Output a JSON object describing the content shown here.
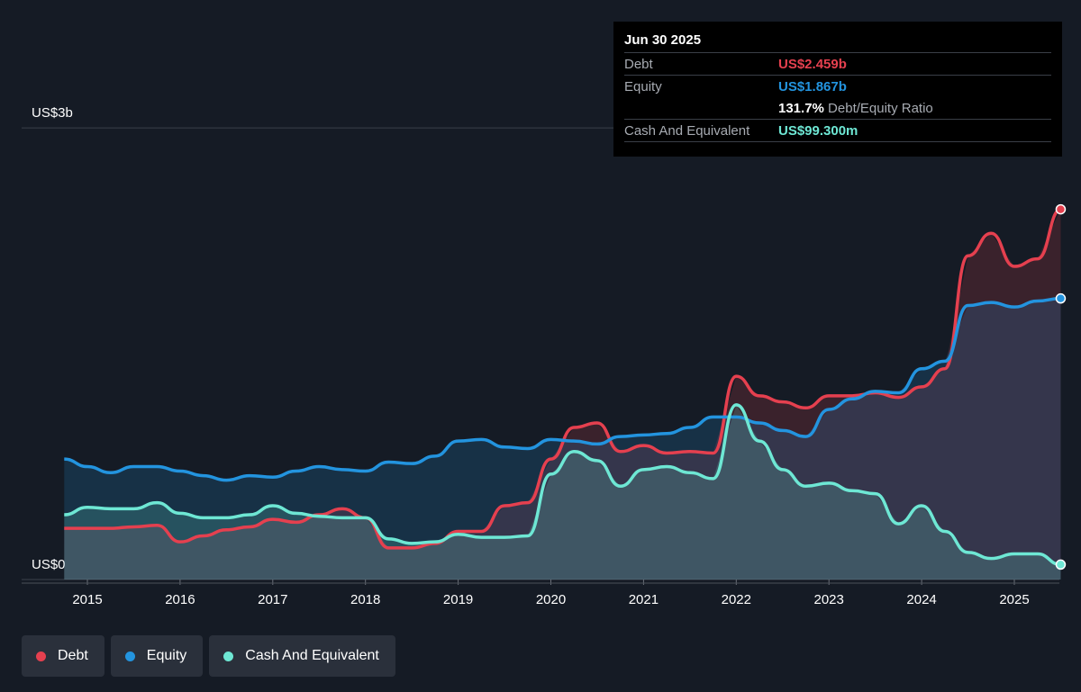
{
  "chart_data": {
    "type": "area",
    "x": [
      2014.75,
      2015,
      2015.25,
      2015.5,
      2015.75,
      2016,
      2016.25,
      2016.5,
      2016.75,
      2017,
      2017.25,
      2017.5,
      2017.75,
      2018,
      2018.25,
      2018.5,
      2018.75,
      2019,
      2019.25,
      2019.5,
      2019.75,
      2020,
      2020.25,
      2020.5,
      2020.75,
      2021,
      2021.25,
      2021.5,
      2021.75,
      2022,
      2022.25,
      2022.5,
      2022.75,
      2023,
      2023.25,
      2023.5,
      2023.75,
      2024,
      2024.25,
      2024.5,
      2024.75,
      2025,
      2025.25,
      2025.5
    ],
    "series": [
      {
        "name": "Debt",
        "color": "#e5404f",
        "values": [
          0.34,
          0.34,
          0.34,
          0.35,
          0.36,
          0.25,
          0.29,
          0.33,
          0.35,
          0.4,
          0.38,
          0.43,
          0.47,
          0.41,
          0.21,
          0.21,
          0.24,
          0.32,
          0.32,
          0.49,
          0.51,
          0.8,
          1.01,
          1.04,
          0.85,
          0.89,
          0.84,
          0.85,
          0.84,
          1.35,
          1.22,
          1.18,
          1.14,
          1.22,
          1.22,
          1.24,
          1.21,
          1.28,
          1.4,
          2.15,
          2.3,
          2.08,
          2.13,
          2.459
        ]
      },
      {
        "name": "Equity",
        "color": "#2394df",
        "values": [
          0.8,
          0.75,
          0.71,
          0.75,
          0.75,
          0.72,
          0.69,
          0.66,
          0.69,
          0.68,
          0.72,
          0.75,
          0.73,
          0.72,
          0.78,
          0.77,
          0.82,
          0.92,
          0.93,
          0.88,
          0.87,
          0.93,
          0.92,
          0.9,
          0.95,
          0.96,
          0.97,
          1.01,
          1.08,
          1.08,
          1.04,
          0.99,
          0.95,
          1.13,
          1.2,
          1.25,
          1.24,
          1.4,
          1.45,
          1.82,
          1.84,
          1.81,
          1.85,
          1.867
        ]
      },
      {
        "name": "Cash And Equivalent",
        "color": "#6ee7d4",
        "values": [
          0.43,
          0.48,
          0.47,
          0.47,
          0.51,
          0.44,
          0.41,
          0.41,
          0.43,
          0.49,
          0.44,
          0.42,
          0.41,
          0.41,
          0.27,
          0.24,
          0.25,
          0.3,
          0.28,
          0.28,
          0.29,
          0.7,
          0.85,
          0.79,
          0.62,
          0.73,
          0.75,
          0.71,
          0.67,
          1.16,
          0.92,
          0.73,
          0.62,
          0.64,
          0.59,
          0.57,
          0.37,
          0.49,
          0.32,
          0.18,
          0.14,
          0.17,
          0.17,
          0.0993
        ]
      }
    ],
    "xlim": [
      2014.74,
      2025.5
    ],
    "xticks": [
      2015,
      2016,
      2017,
      2018,
      2019,
      2020,
      2021,
      2022,
      2023,
      2024,
      2025
    ],
    "ylim": [
      0,
      3
    ],
    "yticks": [
      {
        "value": 0,
        "label": "US$0"
      },
      {
        "value": 3,
        "label": "US$3b"
      }
    ],
    "grid": true
  },
  "tooltip": {
    "date": "Jun 30 2025",
    "rows": [
      [
        "Debt",
        "US$2.459b"
      ],
      [
        "Equity",
        "US$1.867b"
      ]
    ],
    "ratio": "131.7%",
    "ratio_label": "Debt/Equity Ratio",
    "cash": [
      "Cash And Equivalent",
      "US$99.300m"
    ]
  }
}
